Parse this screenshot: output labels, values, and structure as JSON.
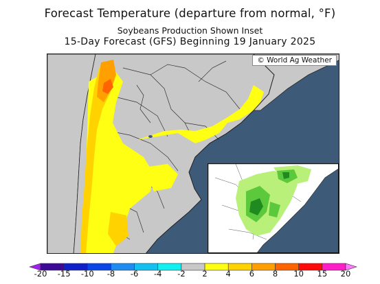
{
  "header": {
    "title": "Forecast Temperature (departure from normal, °F)",
    "subtitle": "Soybeans Production Shown Inset",
    "period": "15-Day Forecast (GFS) Beginning 19 January 2025"
  },
  "map": {
    "copyright": "© World Ag Weather",
    "ocean_color": "#3d5a78",
    "land_neutral_color": "#c8c8c8"
  },
  "legend": {
    "ticks": [
      "-20",
      "-15",
      "-10",
      "-8",
      "-6",
      "-4",
      "-2",
      "2",
      "4",
      "6",
      "8",
      "10",
      "15",
      "20"
    ],
    "bins": [
      {
        "from": "<-20",
        "color": "#a020f0"
      },
      {
        "from": "-20",
        "color": "#3c0a96"
      },
      {
        "from": "-15",
        "color": "#1020c8"
      },
      {
        "from": "-10",
        "color": "#0a46e6"
      },
      {
        "from": "-8",
        "color": "#1e8cf0"
      },
      {
        "from": "-6",
        "color": "#14c0f0"
      },
      {
        "from": "-4",
        "color": "#10f0f0"
      },
      {
        "from": "-2",
        "color": "#c8c8c8"
      },
      {
        "from": "2",
        "color": "#ffff14"
      },
      {
        "from": "4",
        "color": "#ffd200"
      },
      {
        "from": "6",
        "color": "#ffa000"
      },
      {
        "from": "8",
        "color": "#ff6400"
      },
      {
        "from": "10",
        "color": "#ff0a0a"
      },
      {
        "from": "15",
        "color": "#ff1ec8"
      },
      {
        "from": ">20",
        "color": "#ff78ff"
      }
    ]
  }
}
